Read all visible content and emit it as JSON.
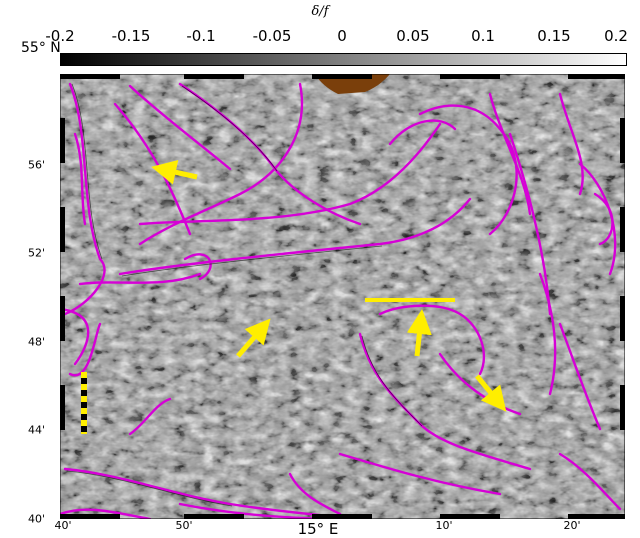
{
  "colorbar": {
    "title": "δ/f",
    "ticks": [
      "-0.2",
      "-0.15",
      "-0.1",
      "-0.05",
      "0",
      "0.05",
      "0.1",
      "0.15",
      "0.2"
    ],
    "range": [
      -0.2,
      0.2
    ],
    "colormap": "black-grey-white"
  },
  "map": {
    "lat_top_label": "55° N",
    "lat_labels": [
      "56'",
      "52'",
      "48'",
      "44'",
      "40'"
    ],
    "lon_labels": [
      "40'",
      "50'",
      "15° E",
      "10'",
      "20'"
    ],
    "overlays": {
      "front_contour_color": "#d600d6",
      "arrow_color": "#ffee00",
      "land_color": "#7a3f0b"
    }
  }
}
